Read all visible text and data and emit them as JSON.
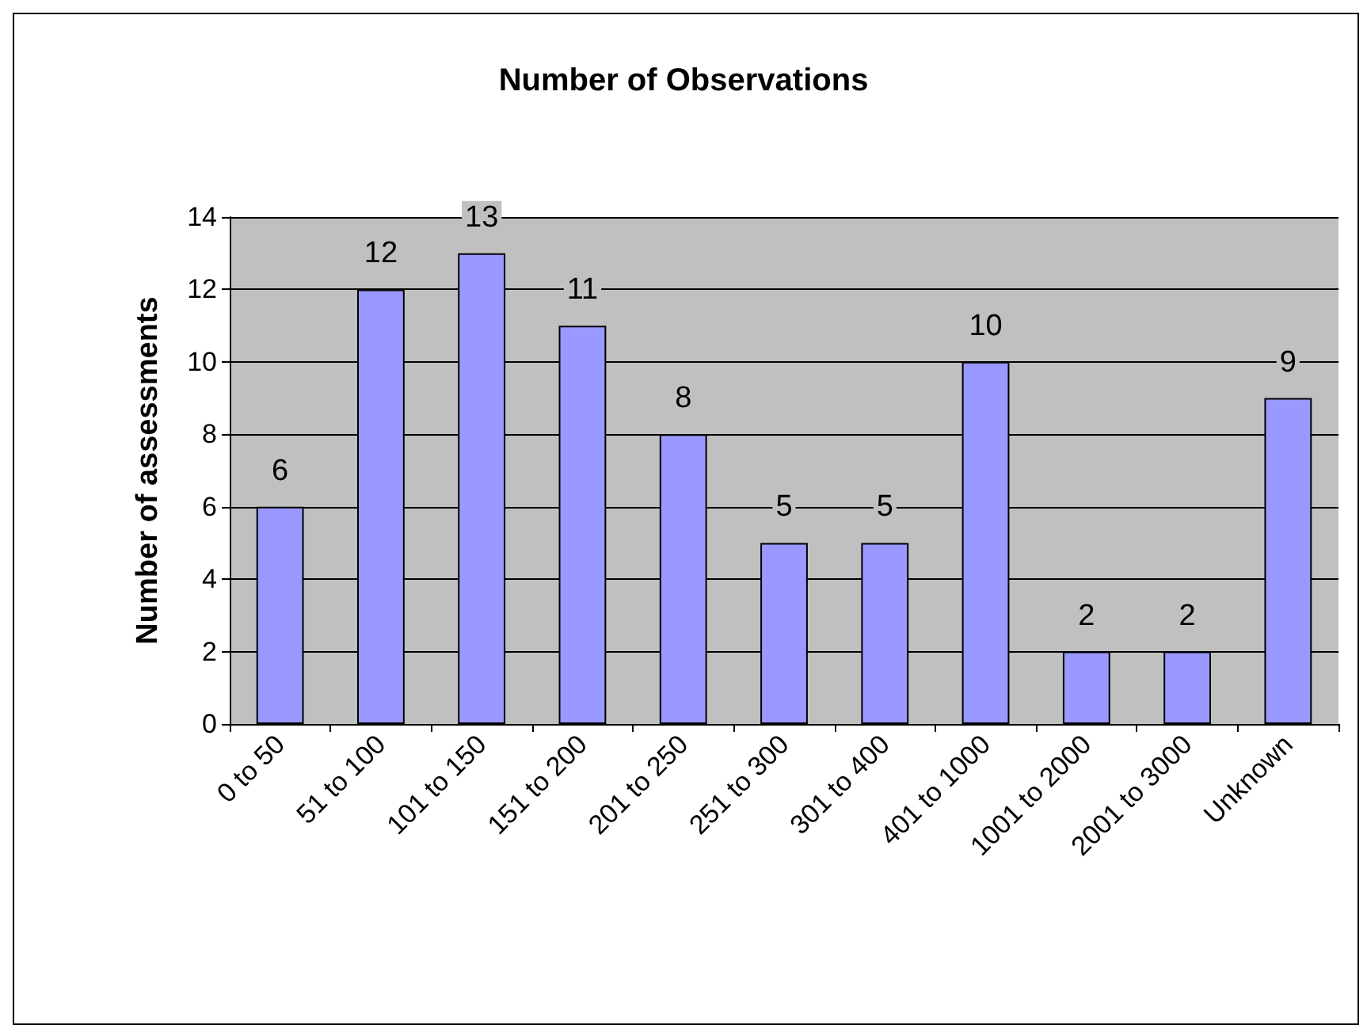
{
  "chart_data": {
    "type": "bar",
    "title": "Number of Observations",
    "ylabel": "Number of assessments",
    "categories": [
      "0 to 50",
      "51 to 100",
      "101 to 150",
      "151 to 200",
      "201 to 250",
      "251 to 300",
      "301 to 400",
      "401 to 1000",
      "1001 to 2000",
      "2001 to 3000",
      "Unknown"
    ],
    "values": [
      6,
      12,
      13,
      11,
      8,
      5,
      5,
      10,
      2,
      2,
      9
    ],
    "color": "#9999ff",
    "ylim": [
      0,
      14
    ],
    "yticks": [
      0,
      2,
      4,
      6,
      8,
      10,
      12,
      14
    ],
    "grid": "y",
    "data_labels": true
  }
}
